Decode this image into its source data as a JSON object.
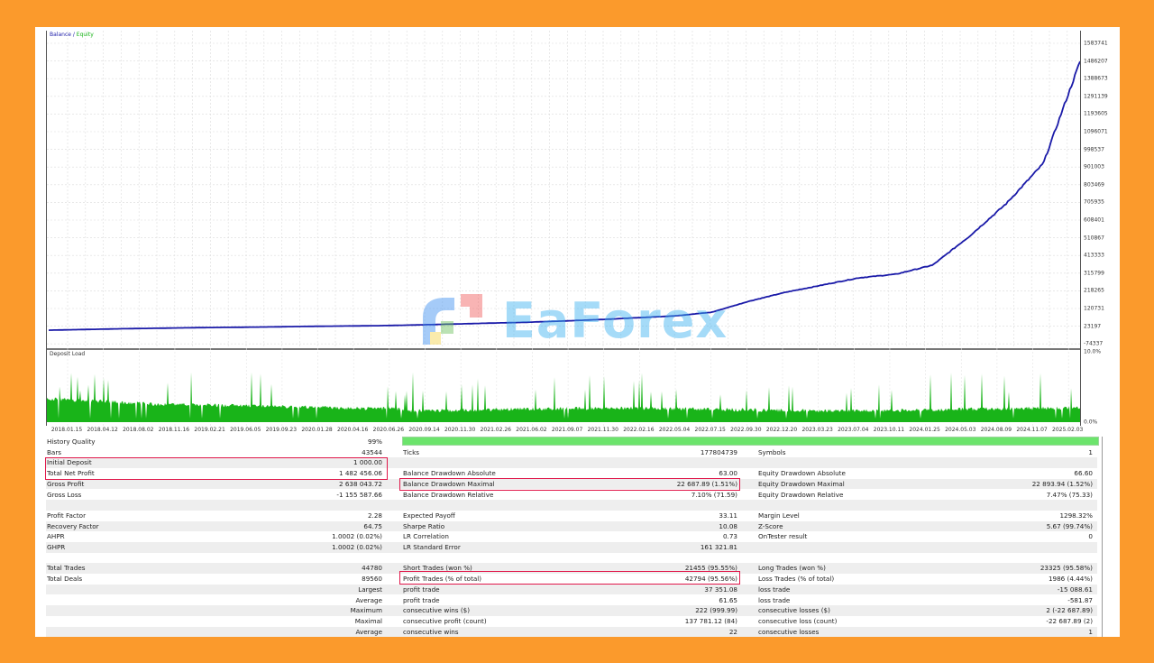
{
  "chart_data": [
    {
      "type": "line",
      "title": "Balance / Equity",
      "series": [
        {
          "name": "Balance",
          "color": "#1a1aa8"
        },
        {
          "name": "Equity",
          "color": "#19b419"
        }
      ],
      "x": [
        "2018.01.15",
        "2018.04.12",
        "2018.08.02",
        "2018.11.16",
        "2019.02.21",
        "2019.06.05",
        "2019.09.23",
        "2020.01.28",
        "2020.04.16",
        "2020.06.26",
        "2020.09.14",
        "2020.11.30",
        "2021.02.26",
        "2021.06.02",
        "2021.09.07",
        "2021.11.30",
        "2022.02.16",
        "2022.05.04",
        "2022.07.15",
        "2022.09.30",
        "2022.12.20",
        "2023.03.23",
        "2023.07.04",
        "2023.10.11",
        "2024.01.25",
        "2024.05.03",
        "2024.08.09",
        "2024.11.07",
        "2025.02.03"
      ],
      "values": [
        1000,
        5000,
        9000,
        12000,
        15000,
        17000,
        19000,
        22000,
        24000,
        26000,
        30000,
        35000,
        40000,
        45000,
        52000,
        60000,
        70000,
        80000,
        100000,
        160000,
        210000,
        250000,
        290000,
        310000,
        360000,
        520000,
        700000,
        920000,
        1483456
      ],
      "ylim": [
        -74337,
        1583741
      ],
      "y_ticks": [
        "1583741",
        "1486207",
        "1388673",
        "1291139",
        "1193605",
        "1096071",
        "998537",
        "901003",
        "803469",
        "705935",
        "608401",
        "510867",
        "413333",
        "315799",
        "218265",
        "120731",
        "23197",
        "-74337"
      ],
      "grid": true
    },
    {
      "type": "bar",
      "title": "Deposit Load",
      "ylim": [
        "0.0%",
        "10.0%"
      ],
      "y_ticks": [
        "10.0%",
        "0.0%"
      ],
      "color": "#19b419",
      "description": "Dense green bars over the same date range; baseline around 2-4%, spikes up to ~8%"
    }
  ],
  "charts": {
    "balance_title": "Balance",
    "balance_sep": " / ",
    "equity_title": "Equity",
    "load_title": "Deposit Load",
    "load_top": "10.0%",
    "load_bottom": "0.0%"
  },
  "watermark": "EaForex",
  "stats": {
    "history_quality": {
      "label": "History Quality",
      "value": "99%"
    },
    "rows": [
      {
        "shade": false,
        "c1": [
          "Bars",
          "43544"
        ],
        "c2": [
          "Ticks",
          "177804739"
        ],
        "c3": [
          "Symbols",
          "1"
        ]
      },
      {
        "shade": true,
        "c1": [
          "Initial Deposit",
          "1 000.00"
        ],
        "c2": [
          "",
          ""
        ],
        "c3": [
          "",
          ""
        ]
      },
      {
        "shade": false,
        "c1": [
          "Total Net Profit",
          "1 482 456.06"
        ],
        "c2": [
          "Balance Drawdown Absolute",
          "63.00"
        ],
        "c3": [
          "Equity Drawdown Absolute",
          "66.60"
        ]
      },
      {
        "shade": true,
        "c1": [
          "Gross Profit",
          "2 638 043.72"
        ],
        "c2": [
          "Balance Drawdown Maximal",
          "22 687.89 (1.51%)"
        ],
        "c3": [
          "Equity Drawdown Maximal",
          "22 893.94 (1.52%)"
        ]
      },
      {
        "shade": false,
        "c1": [
          "Gross Loss",
          "-1 155 587.66"
        ],
        "c2": [
          "Balance Drawdown Relative",
          "7.10% (71.59)"
        ],
        "c3": [
          "Equity Drawdown Relative",
          "7.47% (75.33)"
        ]
      },
      {
        "shade": true,
        "c1": [
          "",
          ""
        ],
        "c2": [
          "",
          ""
        ],
        "c3": [
          "",
          ""
        ]
      },
      {
        "shade": false,
        "c1": [
          "Profit Factor",
          "2.28"
        ],
        "c2": [
          "Expected Payoff",
          "33.11"
        ],
        "c3": [
          "Margin Level",
          "1298.32%"
        ]
      },
      {
        "shade": true,
        "c1": [
          "Recovery Factor",
          "64.75"
        ],
        "c2": [
          "Sharpe Ratio",
          "10.08"
        ],
        "c3": [
          "Z-Score",
          "5.67 (99.74%)"
        ]
      },
      {
        "shade": false,
        "c1": [
          "AHPR",
          "1.0002 (0.02%)"
        ],
        "c2": [
          "LR Correlation",
          "0.73"
        ],
        "c3": [
          "OnTester result",
          "0"
        ]
      },
      {
        "shade": true,
        "c1": [
          "GHPR",
          "1.0002 (0.02%)"
        ],
        "c2": [
          "LR Standard Error",
          "161 321.81"
        ],
        "c3": [
          "",
          ""
        ]
      },
      {
        "shade": false,
        "c1": [
          "",
          ""
        ],
        "c2": [
          "",
          ""
        ],
        "c3": [
          "",
          ""
        ]
      },
      {
        "shade": true,
        "c1": [
          "Total Trades",
          "44780"
        ],
        "c2": [
          "Short Trades (won %)",
          "21455 (95.55%)"
        ],
        "c3": [
          "Long Trades (won %)",
          "23325 (95.58%)"
        ]
      },
      {
        "shade": false,
        "c1": [
          "Total Deals",
          "89560"
        ],
        "c2": [
          "Profit Trades (% of total)",
          "42794 (95.56%)"
        ],
        "c3": [
          "Loss Trades (% of total)",
          "1986 (4.44%)"
        ]
      },
      {
        "shade": true,
        "c1": [
          "",
          "Largest"
        ],
        "c2": [
          "profit trade",
          "37 351.08"
        ],
        "c3": [
          "loss trade",
          "-15 088.61"
        ]
      },
      {
        "shade": false,
        "c1": [
          "",
          "Average"
        ],
        "c2": [
          "profit trade",
          "61.65"
        ],
        "c3": [
          "loss trade",
          "-581.87"
        ]
      },
      {
        "shade": true,
        "c1": [
          "",
          "Maximum"
        ],
        "c2": [
          "consecutive wins ($)",
          "222 (999.99)"
        ],
        "c3": [
          "consecutive losses ($)",
          "2 (-22 687.89)"
        ]
      },
      {
        "shade": false,
        "c1": [
          "",
          "Maximal"
        ],
        "c2": [
          "consecutive profit (count)",
          "137 781.12 (84)"
        ],
        "c3": [
          "consecutive loss (count)",
          "-22 687.89 (2)"
        ]
      },
      {
        "shade": true,
        "c1": [
          "",
          "Average"
        ],
        "c2": [
          "consecutive wins",
          "22"
        ],
        "c3": [
          "consecutive losses",
          "1"
        ]
      }
    ]
  },
  "colors": {
    "page_bg": "#fb9a2c",
    "balance_line": "#1a1aa8",
    "equity_label": "#19b419",
    "deposit_load": "#19b419",
    "quality_bar": "#6ce46c",
    "highlight_border": "#e0174a"
  }
}
